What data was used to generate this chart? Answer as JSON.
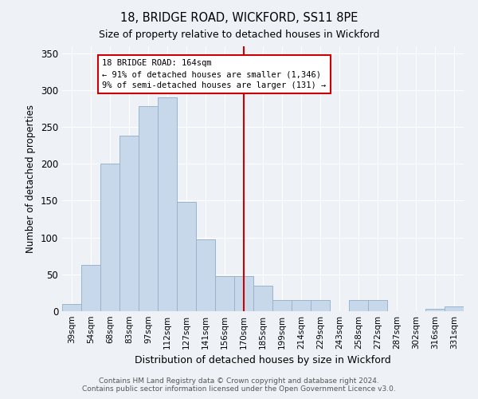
{
  "title": "18, BRIDGE ROAD, WICKFORD, SS11 8PE",
  "subtitle": "Size of property relative to detached houses in Wickford",
  "xlabel": "Distribution of detached houses by size in Wickford",
  "ylabel": "Number of detached properties",
  "categories": [
    "39sqm",
    "54sqm",
    "68sqm",
    "83sqm",
    "97sqm",
    "112sqm",
    "127sqm",
    "141sqm",
    "156sqm",
    "170sqm",
    "185sqm",
    "199sqm",
    "214sqm",
    "229sqm",
    "243sqm",
    "258sqm",
    "272sqm",
    "287sqm",
    "302sqm",
    "316sqm",
    "331sqm"
  ],
  "values": [
    10,
    63,
    200,
    238,
    278,
    290,
    148,
    97,
    48,
    48,
    35,
    15,
    15,
    15,
    0,
    15,
    15,
    0,
    0,
    3,
    7
  ],
  "bar_color": "#c6d8ea",
  "bar_edge_color": "#9ab4cc",
  "marker_line_color": "#cc0000",
  "annotation_text_line1": "18 BRIDGE ROAD: 164sqm",
  "annotation_text_line2": "← 91% of detached houses are smaller (1,346)",
  "annotation_text_line3": "9% of semi-detached houses are larger (131) →",
  "annotation_box_color": "#ffffff",
  "annotation_box_edge": "#cc0000",
  "ylim": [
    0,
    360
  ],
  "yticks": [
    0,
    50,
    100,
    150,
    200,
    250,
    300,
    350
  ],
  "background_color": "#eef2f7",
  "grid_color": "#ffffff",
  "footer_line1": "Contains HM Land Registry data © Crown copyright and database right 2024.",
  "footer_line2": "Contains public sector information licensed under the Open Government Licence v3.0."
}
